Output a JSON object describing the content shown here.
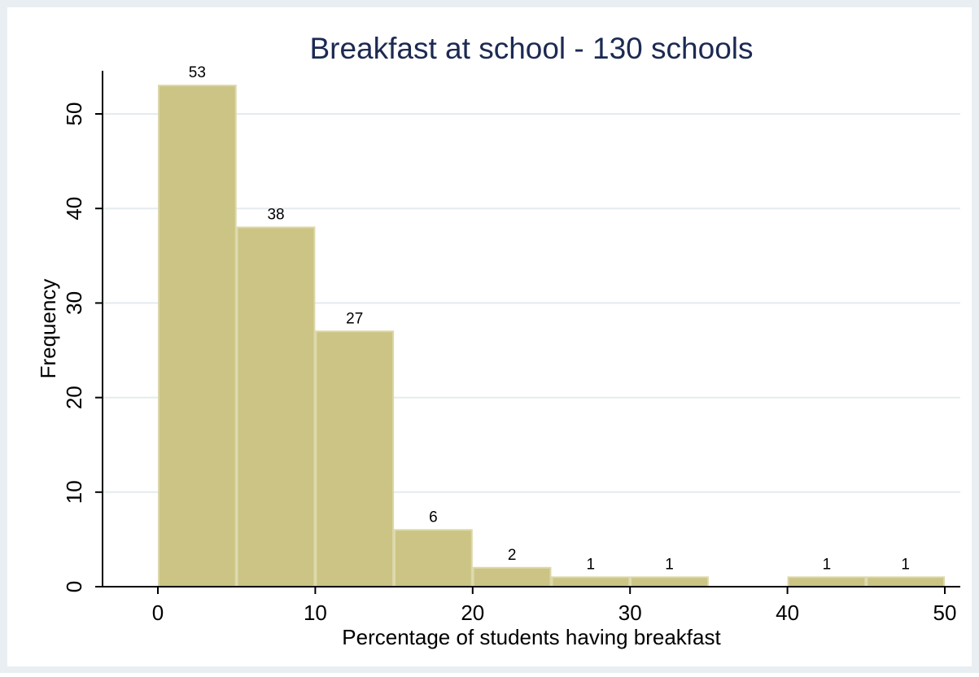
{
  "colors": {
    "outer_background": "#e9eef2",
    "plot_background": "#ffffff",
    "bar_fill": "#cbc484",
    "bar_stroke": "#dcd7a8",
    "gridline": "#e4ecee",
    "title_color": "#1c2a52",
    "text_color": "#000000"
  },
  "chart_data": {
    "type": "bar",
    "title": "Breakfast at school - 130 schools",
    "xlabel": "Percentage of students having breakfast",
    "ylabel": "Frequency",
    "bin_width": 5,
    "bins": [
      {
        "start": 0,
        "end": 5,
        "value": 53,
        "label": "53"
      },
      {
        "start": 5,
        "end": 10,
        "value": 38,
        "label": "38"
      },
      {
        "start": 10,
        "end": 15,
        "value": 27,
        "label": "27"
      },
      {
        "start": 15,
        "end": 20,
        "value": 6,
        "label": "6"
      },
      {
        "start": 20,
        "end": 25,
        "value": 2,
        "label": "2"
      },
      {
        "start": 25,
        "end": 30,
        "value": 1,
        "label": "1"
      },
      {
        "start": 30,
        "end": 35,
        "value": 1,
        "label": "1"
      },
      {
        "start": 40,
        "end": 45,
        "value": 1,
        "label": "1"
      },
      {
        "start": 45,
        "end": 50,
        "value": 1,
        "label": "1"
      }
    ],
    "xlim": [
      -4,
      51
    ],
    "ylim": [
      0,
      55
    ],
    "x_ticks": [
      0,
      10,
      20,
      30,
      40,
      50
    ],
    "y_ticks": [
      0,
      10,
      20,
      30,
      40,
      50
    ],
    "grid": true,
    "legend": "none"
  }
}
